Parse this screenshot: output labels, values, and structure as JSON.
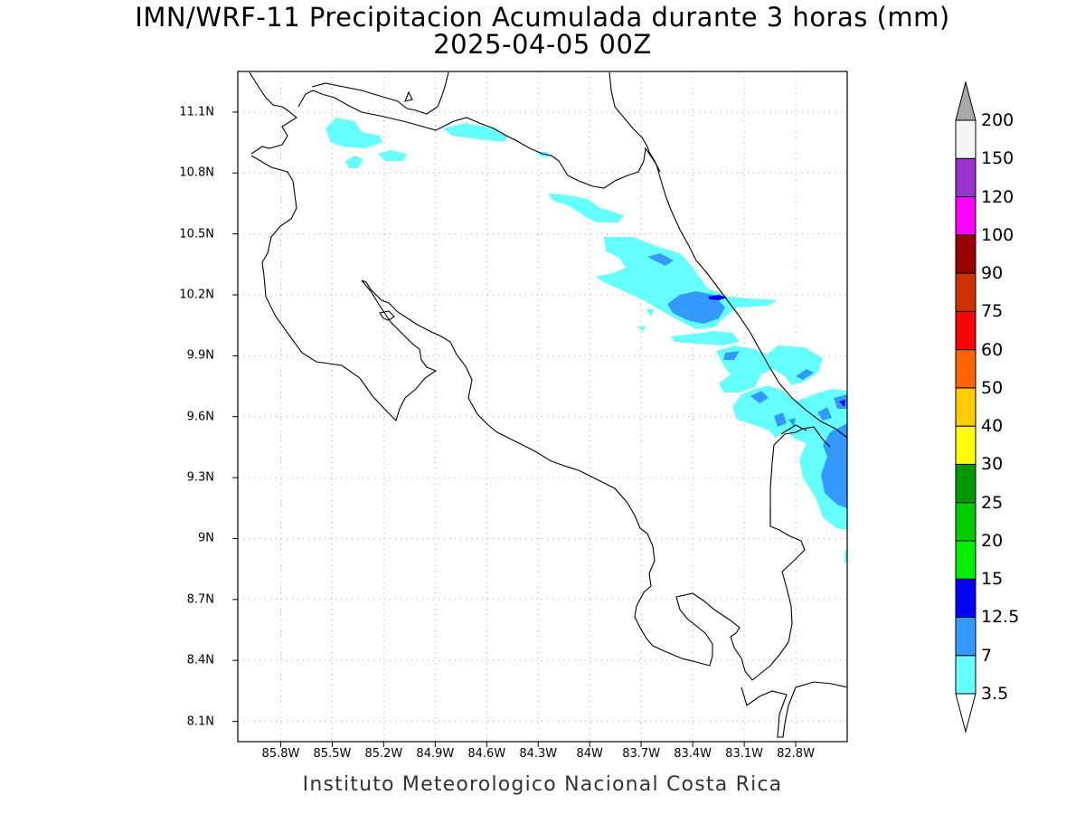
{
  "title": {
    "line1": "IMN/WRF-11 Precipitacion Acumulada durante 3 horas (mm)",
    "line2": "2025-04-05 00Z"
  },
  "footer": "Instituto Meteorologico Nacional Costa Rica",
  "axes": {
    "lat_labels": [
      "11.1N",
      "10.8N",
      "10.5N",
      "10.2N",
      "9.9N",
      "9.6N",
      "9.3N",
      "9N",
      "8.7N",
      "8.4N",
      "8.1N"
    ],
    "lon_labels": [
      "85.8W",
      "85.5W",
      "85.2W",
      "84.9W",
      "84.6W",
      "84.3W",
      "84W",
      "83.7W",
      "83.4W",
      "83.1W",
      "82.8W"
    ],
    "lat_range": [
      8.0,
      11.3
    ],
    "lon_range": [
      -86.05,
      -82.5
    ],
    "grid": "dotted"
  },
  "colorbar": {
    "levels": [
      "3.5",
      "7",
      "12.5",
      "15",
      "20",
      "25",
      "30",
      "40",
      "50",
      "60",
      "75",
      "90",
      "100",
      "120",
      "150",
      "200"
    ],
    "colors": [
      "#66ffff",
      "#3399ff",
      "#0000ff",
      "#00ee00",
      "#00cc00",
      "#009900",
      "#ffff00",
      "#ffcc00",
      "#ff6600",
      "#ff0000",
      "#cc3300",
      "#990000",
      "#ff00ff",
      "#9933cc",
      "#f5f5f5",
      "#a8a8a8"
    ],
    "units": "mm"
  }
}
